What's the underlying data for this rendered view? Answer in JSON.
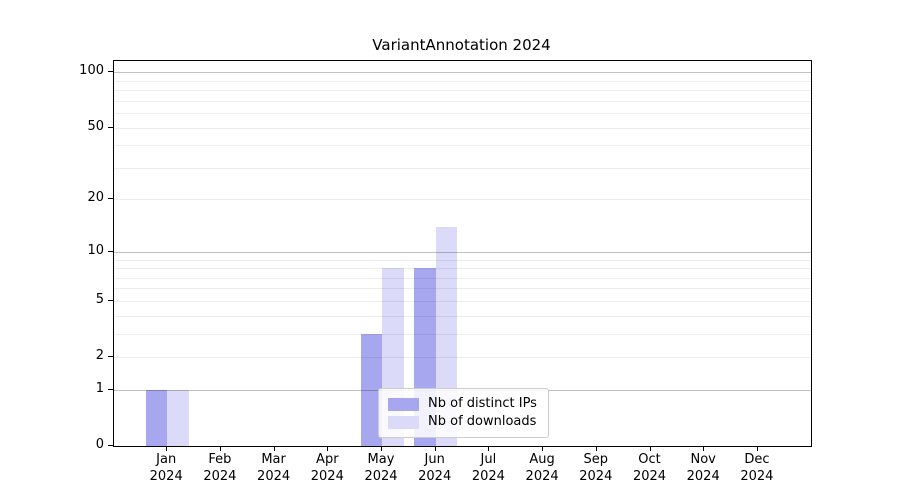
{
  "title": "VariantAnnotation 2024",
  "chart_data": {
    "type": "bar",
    "categories": [
      "Jan",
      "Feb",
      "Mar",
      "Apr",
      "May",
      "Jun",
      "Jul",
      "Aug",
      "Sep",
      "Oct",
      "Nov",
      "Dec"
    ],
    "year": "2024",
    "series": [
      {
        "name": "Nb of distinct IPs",
        "color": "#a7a7f0",
        "values": [
          1,
          0,
          0,
          0,
          3,
          8,
          0,
          0,
          0,
          0,
          0,
          0
        ]
      },
      {
        "name": "Nb of downloads",
        "color": "#dbdbf9",
        "values": [
          1,
          0,
          0,
          0,
          8,
          14,
          0,
          0,
          0,
          0,
          0,
          0
        ]
      }
    ],
    "yscale": "log1p",
    "ylim": [
      0,
      115
    ],
    "yticks": [
      0,
      1,
      2,
      5,
      10,
      20,
      50,
      100
    ],
    "major_gridlines": [
      1,
      10,
      100
    ],
    "minor_gridlines": [
      2,
      3,
      4,
      5,
      6,
      7,
      8,
      9,
      20,
      30,
      40,
      50,
      60,
      70,
      80,
      90
    ],
    "grid": true,
    "legend_position": "lower center"
  }
}
